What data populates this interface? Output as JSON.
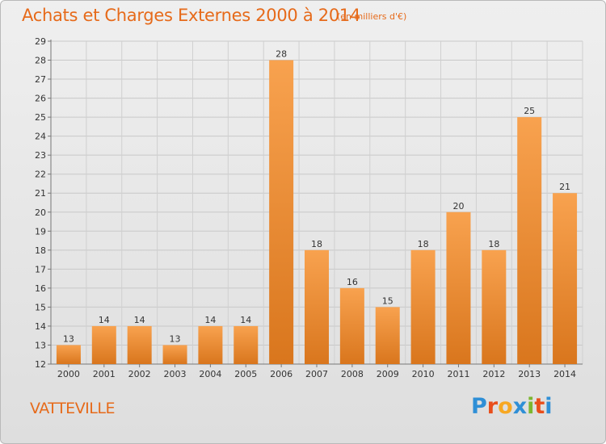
{
  "header": {
    "title": "Achats et Charges Externes 2000 à 2014",
    "subtitle": "(en milliers d'€)"
  },
  "footer": {
    "commune": "VATTEVILLE",
    "logo": "Proxiti",
    "logo_colors": [
      "#2f8fd6",
      "#e94e1b",
      "#f7a823",
      "#2f8fd6",
      "#7cb62f",
      "#e94e1b",
      "#2f8fd6"
    ]
  },
  "chart_data": {
    "type": "bar",
    "title": "Achats et Charges Externes 2000 à 2014",
    "subtitle": "(en milliers d'€)",
    "categories": [
      "2000",
      "2001",
      "2002",
      "2003",
      "2004",
      "2005",
      "2006",
      "2007",
      "2008",
      "2009",
      "2010",
      "2011",
      "2012",
      "2013",
      "2014"
    ],
    "values": [
      13,
      14,
      14,
      13,
      14,
      14,
      28,
      18,
      16,
      15,
      18,
      20,
      18,
      25,
      21
    ],
    "ylim": [
      12,
      29
    ],
    "yticks": [
      12,
      13,
      14,
      15,
      16,
      17,
      18,
      19,
      20,
      21,
      22,
      23,
      24,
      25,
      26,
      27,
      28,
      29
    ],
    "grid": true,
    "bar_color_top": "#f8a24f",
    "bar_color_bottom": "#d9761d"
  }
}
